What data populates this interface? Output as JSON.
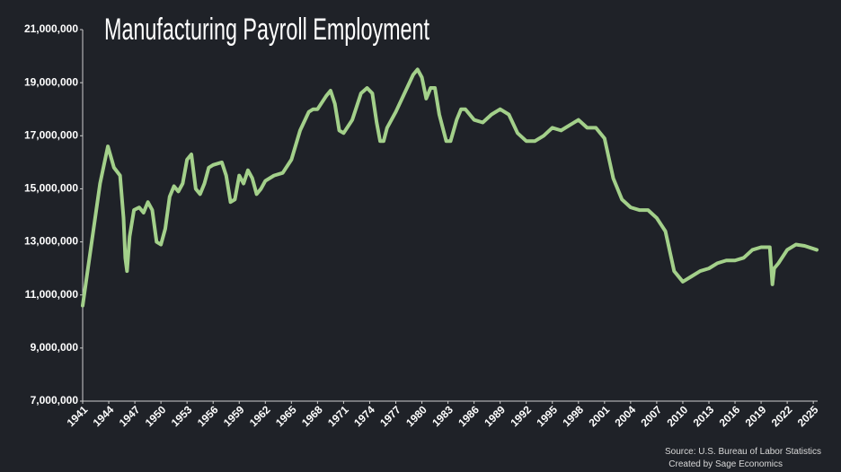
{
  "chart_data": {
    "type": "line",
    "title": "Manufacturing Payroll Employment",
    "source": "Source: U.S. Bureau of Labor Statistics",
    "credit": "Created by Sage Economics",
    "color": "#a3d08a",
    "x": [
      1941,
      1942,
      1943,
      1943.9,
      1944.6,
      1945.3,
      1945.7,
      1945.9,
      1946.1,
      1946.4,
      1946.9,
      1947.5,
      1948,
      1948.5,
      1949,
      1949.5,
      1950,
      1950.5,
      1951,
      1951.5,
      1952,
      1952.5,
      1953,
      1953.5,
      1954,
      1954.5,
      1955,
      1955.5,
      1956,
      1957,
      1957.5,
      1958,
      1958.5,
      1959,
      1959.5,
      1960,
      1960.5,
      1961,
      1961.5,
      1962,
      1963,
      1964,
      1965,
      1966,
      1967,
      1967.5,
      1968,
      1969,
      1969.5,
      1970,
      1970.5,
      1971,
      1972,
      1973,
      1973.7,
      1974.3,
      1974.8,
      1975.2,
      1975.6,
      1976,
      1977,
      1978,
      1979,
      1979.5,
      1980,
      1980.5,
      1981,
      1981.5,
      1982,
      1982.8,
      1983.3,
      1984,
      1984.5,
      1985,
      1986,
      1987,
      1988,
      1989,
      1990,
      1991,
      1992,
      1993,
      1994,
      1995,
      1996,
      1997,
      1998,
      1999,
      2000,
      2001,
      2002,
      2003,
      2004,
      2005,
      2006,
      2007,
      2008,
      2009,
      2010,
      2011,
      2012,
      2013,
      2014,
      2015,
      2016,
      2017,
      2018,
      2019,
      2020,
      2020.3,
      2020.5,
      2021,
      2022,
      2023,
      2024,
      2025.4
    ],
    "values": [
      10600000,
      12900000,
      15200000,
      16600000,
      15800000,
      15500000,
      13900000,
      12400000,
      11900000,
      13200000,
      14200000,
      14300000,
      14100000,
      14500000,
      14200000,
      13000000,
      12900000,
      13500000,
      14700000,
      15100000,
      14900000,
      15200000,
      16100000,
      16300000,
      15000000,
      14800000,
      15200000,
      15800000,
      15900000,
      16000000,
      15500000,
      14500000,
      14600000,
      15500000,
      15200000,
      15700000,
      15400000,
      14800000,
      15000000,
      15300000,
      15500000,
      15600000,
      16100000,
      17200000,
      17900000,
      18000000,
      18000000,
      18500000,
      18700000,
      18200000,
      17200000,
      17100000,
      17600000,
      18600000,
      18800000,
      18600000,
      17500000,
      16800000,
      16800000,
      17300000,
      17900000,
      18600000,
      19300000,
      19500000,
      19200000,
      18400000,
      18800000,
      18800000,
      17800000,
      16800000,
      16800000,
      17600000,
      18000000,
      18000000,
      17600000,
      17500000,
      17800000,
      18000000,
      17800000,
      17100000,
      16800000,
      16800000,
      17000000,
      17300000,
      17200000,
      17400000,
      17600000,
      17300000,
      17300000,
      16900000,
      15400000,
      14600000,
      14300000,
      14200000,
      14200000,
      13900000,
      13400000,
      11900000,
      11500000,
      11700000,
      11900000,
      12000000,
      12200000,
      12300000,
      12300000,
      12400000,
      12700000,
      12800000,
      12800000,
      11400000,
      12000000,
      12200000,
      12700000,
      12900000,
      12850000,
      12700000
    ],
    "xlim": [
      1941,
      2025.5
    ],
    "xticks": [
      1941,
      1944,
      1947,
      1950,
      1953,
      1956,
      1959,
      1962,
      1965,
      1968,
      1971,
      1974,
      1977,
      1980,
      1983,
      1986,
      1989,
      1992,
      1995,
      1998,
      2001,
      2004,
      2007,
      2010,
      2013,
      2016,
      2019,
      2022,
      2025
    ],
    "ylim": [
      7000000,
      21000000
    ],
    "yticks": [
      {
        "value": 7000000,
        "label": "7,000,000"
      },
      {
        "value": 9000000,
        "label": "9,000,000"
      },
      {
        "value": 11000000,
        "label": "11,000,000"
      },
      {
        "value": 13000000,
        "label": "13,000,000"
      },
      {
        "value": 15000000,
        "label": "15,000,000"
      },
      {
        "value": 17000000,
        "label": "17,000,000"
      },
      {
        "value": 19000000,
        "label": "19,000,000"
      },
      {
        "value": 21000000,
        "label": "21,000,000"
      }
    ],
    "grid": false
  }
}
